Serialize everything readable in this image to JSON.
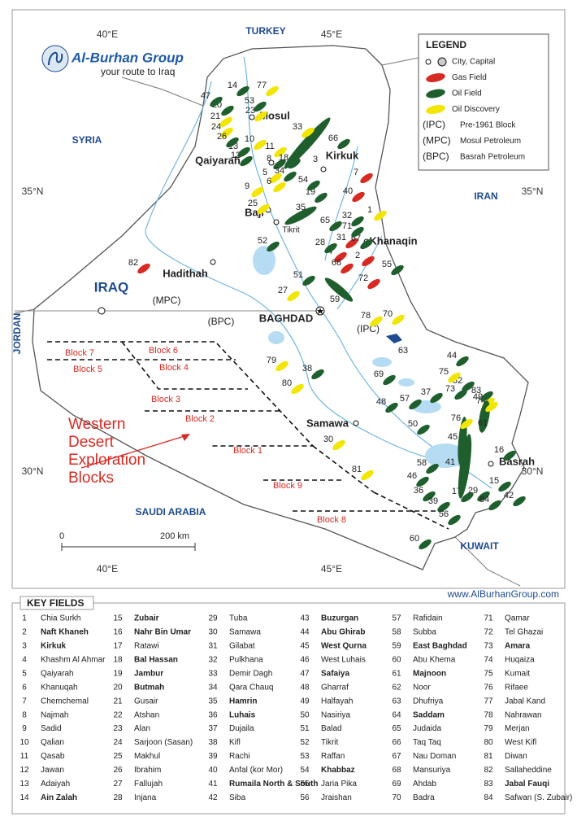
{
  "logo": {
    "name": "Al-Burhan Group",
    "tagline": "your route to Iraq"
  },
  "legend": {
    "title": "LEGEND",
    "items": [
      {
        "label": "City, Capital"
      },
      {
        "label": "Gas Field",
        "color": "#d62a22"
      },
      {
        "label": "Oil Field",
        "color": "#1f5f2e"
      },
      {
        "label": "Oil Discovery",
        "color": "#f2e600"
      },
      {
        "code": "(IPC)",
        "label": "Pre-1961 Block"
      },
      {
        "code": "(MPC)",
        "label": "Mosul Petroleum"
      },
      {
        "code": "(BPC)",
        "label": "Basrah Petroleum"
      }
    ]
  },
  "graticule": [
    "40°E",
    "45°E",
    "35°N",
    "30°N"
  ],
  "map_labels": [
    "TURKEY",
    "SYRIA",
    "IRAN",
    "IRAQ",
    "JORDAN",
    "SAUDI ARABIA",
    "KUWAIT",
    "Mosul",
    "Kirkuk",
    "Qaiyarah",
    "Baji",
    "Tikrit",
    "Khanaqin",
    "Hadithah",
    "BAGHDAD",
    "Samawa",
    "Basrah",
    "(MPC)",
    "(BPC)",
    "(IPC)"
  ],
  "blocks": [
    "Block 7",
    "Block 6",
    "Block 5",
    "Block 4",
    "Block 3",
    "Block 2",
    "Block 1",
    "Block 9",
    "Block 8"
  ],
  "annotation": [
    "Western",
    "Desert",
    "Exploration",
    "Blocks"
  ],
  "scale": [
    "0",
    "200 km"
  ],
  "website": "www.AlBurhanGroup.com",
  "key_fields": {
    "title": "KEY FIELDS",
    "items": [
      {
        "number": "1",
        "name": "Chia Surkh",
        "color": "#f2e600"
      },
      {
        "number": "2",
        "name": "Naft Khaneh",
        "bold": true,
        "color": "#d62a22"
      },
      {
        "number": "3",
        "name": "Kirkuk",
        "bold": true,
        "color": "#1f5f2e"
      },
      {
        "number": "4",
        "name": "Khashm Al Ahmar",
        "color": "#d62a22"
      },
      {
        "number": "5",
        "name": "Qaiyarah",
        "color": "#f2e600"
      },
      {
        "number": "6",
        "name": "Khanuqah",
        "color": "#f2e600"
      },
      {
        "number": "7",
        "name": "Chemchemal",
        "color": "#d62a22"
      },
      {
        "number": "8",
        "name": "Najmah",
        "color": "#1f5f2e"
      },
      {
        "number": "9",
        "name": "Sadid",
        "color": "#f2e600"
      },
      {
        "number": "10",
        "name": "Qalian",
        "color": "#f2e600"
      },
      {
        "number": "11",
        "name": "Qasab",
        "color": "#f2e600"
      },
      {
        "number": "12",
        "name": "Jawan",
        "color": "#1f5f2e"
      },
      {
        "number": "13",
        "name": "Adaiyah",
        "color": "#1f5f2e"
      },
      {
        "number": "14",
        "name": "Ain Zalah",
        "bold": true,
        "color": "#1f5f2e"
      },
      {
        "number": "15",
        "name": "Zubair",
        "bold": true,
        "color": "#1f5f2e"
      },
      {
        "number": "16",
        "name": "Nahr Bin Umar",
        "bold": true,
        "color": "#1f5f2e"
      },
      {
        "number": "17",
        "name": "Ratawi",
        "color": "#1f5f2e"
      },
      {
        "number": "18",
        "name": "Bal Hassan",
        "bold": true,
        "color": "#1f5f2e"
      },
      {
        "number": "19",
        "name": "Jambur",
        "bold": true,
        "color": "#1f5f2e"
      },
      {
        "number": "20",
        "name": "Butmah",
        "bold": true,
        "color": "#1f5f2e"
      },
      {
        "number": "21",
        "name": "Gusair",
        "color": "#f2e600"
      },
      {
        "number": "22",
        "name": "Atshan",
        "color": "#1f5f2e"
      },
      {
        "number": "23",
        "name": "Alan",
        "color": "#f2e600"
      },
      {
        "number": "24",
        "name": "Sarjoon (Sasan)",
        "color": "#f2e600"
      },
      {
        "number": "25",
        "name": "Makhul",
        "color": "#f2e600"
      },
      {
        "number": "26",
        "name": "Ibrahim",
        "color": "#1f5f2e"
      },
      {
        "number": "27",
        "name": "Fallujah",
        "color": "#f2e600"
      },
      {
        "number": "28",
        "name": "Injana",
        "color": "#1f5f2e"
      },
      {
        "number": "29",
        "name": "Tuba",
        "color": "#1f5f2e"
      },
      {
        "number": "30",
        "name": "Samawa",
        "color": "#f2e600"
      },
      {
        "number": "31",
        "name": "Gilabat",
        "color": "#d62a22"
      },
      {
        "number": "32",
        "name": "Pulkhana",
        "color": "#1f5f2e"
      },
      {
        "number": "33",
        "name": "Demir Dagh",
        "color": "#f2e600"
      },
      {
        "number": "34",
        "name": "Qara Chauq",
        "color": "#1f5f2e"
      },
      {
        "number": "35",
        "name": "Hamrin",
        "bold": true,
        "color": "#1f5f2e"
      },
      {
        "number": "36",
        "name": "Luhais",
        "bold": true,
        "color": "#1f5f2e"
      },
      {
        "number": "37",
        "name": "Dujaila",
        "color": "#1f5f2e"
      },
      {
        "number": "38",
        "name": "Kifl",
        "color": "#1f5f2e"
      },
      {
        "number": "39",
        "name": "Rachi",
        "color": "#1f5f2e"
      },
      {
        "number": "40",
        "name": "Anfal (kor Mor)",
        "color": "#d62a22"
      },
      {
        "number": "41",
        "name": "Rumaila North & South",
        "bold": true,
        "color": "#1f5f2e"
      },
      {
        "number": "42",
        "name": "Siba",
        "color": "#1f5f2e"
      },
      {
        "number": "43",
        "name": "Buzurgan",
        "bold": true,
        "color": "#1f5f2e"
      },
      {
        "number": "44",
        "name": "Abu Ghirab",
        "bold": true,
        "color": "#1f5f2e"
      },
      {
        "number": "45",
        "name": "West Qurna",
        "bold": true,
        "color": "#1f5f2e"
      },
      {
        "number": "46",
        "name": "West Luhais",
        "color": "#1f5f2e"
      },
      {
        "number": "47",
        "name": "Safaiya",
        "bold": true,
        "color": "#1f5f2e"
      },
      {
        "number": "48",
        "name": "Gharraf",
        "color": "#1f5f2e"
      },
      {
        "number": "49",
        "name": "Halfayah",
        "color": "#f2e600"
      },
      {
        "number": "50",
        "name": "Nasiriya",
        "color": "#1f5f2e"
      },
      {
        "number": "51",
        "name": "Balad",
        "color": "#1f5f2e"
      },
      {
        "number": "52",
        "name": "Tikrit",
        "color": "#1f5f2e"
      },
      {
        "number": "53",
        "name": "Raffan",
        "color": "#1f5f2e"
      },
      {
        "number": "54",
        "name": "Khabbaz",
        "bold": true,
        "color": "#1f5f2e"
      },
      {
        "number": "55",
        "name": "Jaria Pika",
        "color": "#1f5f2e"
      },
      {
        "number": "56",
        "name": "Jraishan",
        "color": "#1f5f2e"
      },
      {
        "number": "57",
        "name": "Rafidain",
        "color": "#1f5f2e"
      },
      {
        "number": "58",
        "name": "Subba",
        "color": "#1f5f2e"
      },
      {
        "number": "59",
        "name": "East Baghdad",
        "bold": true,
        "color": "#1f5f2e"
      },
      {
        "number": "60",
        "name": "Abu Khema",
        "color": "#1f5f2e"
      },
      {
        "number": "61",
        "name": "Majnoon",
        "bold": true,
        "color": "#1f5f2e"
      },
      {
        "number": "62",
        "name": "Noor",
        "color": "#1f5f2e"
      },
      {
        "number": "63",
        "name": "Dhufriya",
        "color": "#1e4b8f"
      },
      {
        "number": "64",
        "name": "Saddam",
        "bold": true,
        "color": "#1f5f2e"
      },
      {
        "number": "65",
        "name": "Judaida",
        "color": "#1f5f2e"
      },
      {
        "number": "66",
        "name": "Taq Taq",
        "color": "#1f5f2e"
      },
      {
        "number": "67",
        "name": "Nau Doman",
        "color": "#1f5f2e"
      },
      {
        "number": "68",
        "name": "Mansuriya",
        "color": "#d62a22"
      },
      {
        "number": "69",
        "name": "Ahdab",
        "color": "#1f5f2e"
      },
      {
        "number": "70",
        "name": "Badra",
        "color": "#f2e600"
      },
      {
        "number": "71",
        "name": "Qamar",
        "color": "#1f5f2e"
      },
      {
        "number": "72",
        "name": "Tel Ghazai",
        "color": "#d62a22"
      },
      {
        "number": "73",
        "name": "Amara",
        "bold": true,
        "color": "#1f5f2e"
      },
      {
        "number": "74",
        "name": "Huqaiza",
        "color": "#f2e600"
      },
      {
        "number": "75",
        "name": "Kumait",
        "color": "#f2e600"
      },
      {
        "number": "76",
        "name": "Rifaee",
        "color": "#f2e600"
      },
      {
        "number": "77",
        "name": "Jabal Kand",
        "color": "#f2e600"
      },
      {
        "number": "78",
        "name": "Nahrawan",
        "color": "#f2e600"
      },
      {
        "number": "79",
        "name": "Merjan",
        "color": "#f2e600"
      },
      {
        "number": "80",
        "name": "West Kifl",
        "color": "#f2e600"
      },
      {
        "number": "81",
        "name": "Diwan",
        "color": "#f2e600"
      },
      {
        "number": "82",
        "name": "Sallaheddine",
        "color": "#d62a22"
      },
      {
        "number": "83",
        "name": "Jabal Fauqi",
        "bold": true,
        "color": "#1f5f2e"
      },
      {
        "number": "84",
        "name": "Safwan (S. Zubair)",
        "color": "#1f5f2e"
      }
    ]
  }
}
